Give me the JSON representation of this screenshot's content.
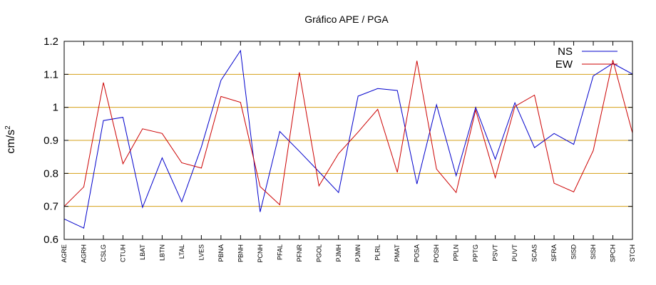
{
  "chart_data": {
    "type": "line",
    "title": "Gráfico  APE / PGA",
    "xlabel": "",
    "ylabel_base": "cm/s",
    "ylabel_exp": "2",
    "ylim": [
      0.6,
      1.2
    ],
    "yticks": [
      "0.6",
      "0.7",
      "0.8",
      "0.9",
      "1",
      "1.1",
      "1.2"
    ],
    "grid_color": "#d4a017",
    "legend_position": "top-right",
    "categories": [
      "AGRE",
      "AGRH",
      "CSLG",
      "CTUH",
      "LBAT",
      "LBTN",
      "LTAL",
      "LVES",
      "PBNA",
      "PBNH",
      "PCNH",
      "PFAL",
      "PFNR",
      "PGOL",
      "PJMH",
      "PJMN",
      "PLRL",
      "PMAT",
      "POSA",
      "POSH",
      "PPLN",
      "PPTG",
      "PSVT",
      "PUVT",
      "SCAS",
      "SFRA",
      "SISD",
      "SISH",
      "SPCH",
      "STCH"
    ],
    "series": [
      {
        "name": "NS",
        "color": "#0000cc",
        "values": [
          0.662,
          0.634,
          0.96,
          0.97,
          0.697,
          0.847,
          0.714,
          0.88,
          1.082,
          1.172,
          0.683,
          0.927,
          0.867,
          0.805,
          0.742,
          1.034,
          1.057,
          1.051,
          0.768,
          1.008,
          0.793,
          1.0,
          0.843,
          1.014,
          0.878,
          0.921,
          0.888,
          1.095,
          1.133,
          1.101
        ]
      },
      {
        "name": "EW",
        "color": "#cc0000",
        "values": [
          0.7,
          0.759,
          1.075,
          0.829,
          0.935,
          0.921,
          0.832,
          0.816,
          1.033,
          1.015,
          0.76,
          0.705,
          1.106,
          0.762,
          0.86,
          0.925,
          0.994,
          0.803,
          1.141,
          0.813,
          0.742,
          0.992,
          0.787,
          1.003,
          1.037,
          0.77,
          0.744,
          0.869,
          1.143,
          0.922
        ]
      }
    ]
  }
}
